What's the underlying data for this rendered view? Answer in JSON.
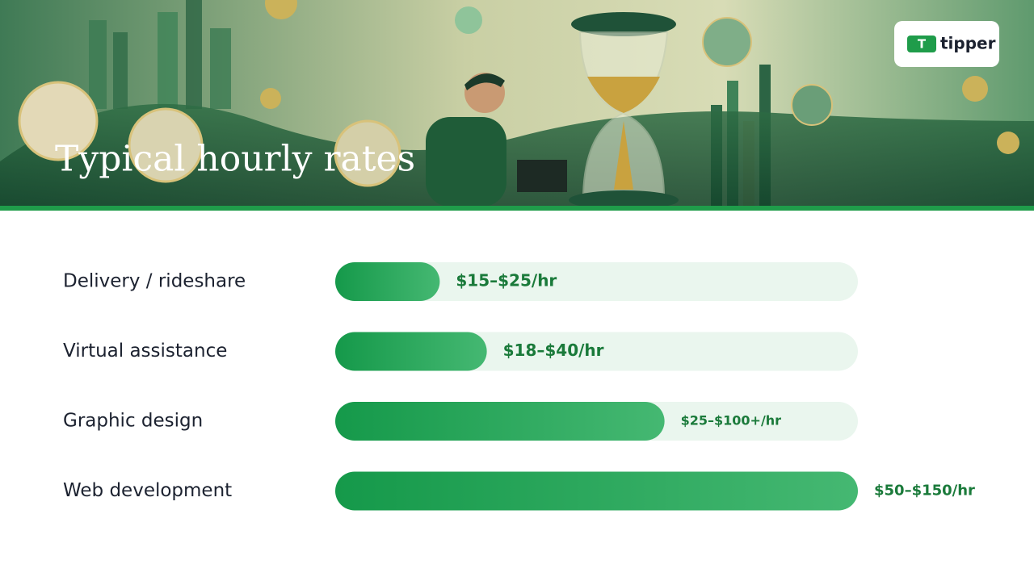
{
  "header": {
    "title": "Typical hourly rates",
    "logo": "tipper"
  },
  "chart_data": {
    "type": "bar",
    "orientation": "horizontal",
    "categories": [
      "Delivery / rideshare",
      "Virtual assistance",
      "Graphic design",
      "Web development"
    ],
    "values": [
      20,
      29,
      63,
      100
    ],
    "rate_labels": [
      "$15–$25/hr",
      "$18–$40/hr",
      "$25–$100+/hr",
      "$50–$150/hr"
    ],
    "color": "#1e9e4a",
    "track_color": "#eaf6ee",
    "label_color": "#1a7a3a",
    "xlim": [
      0,
      100
    ]
  }
}
